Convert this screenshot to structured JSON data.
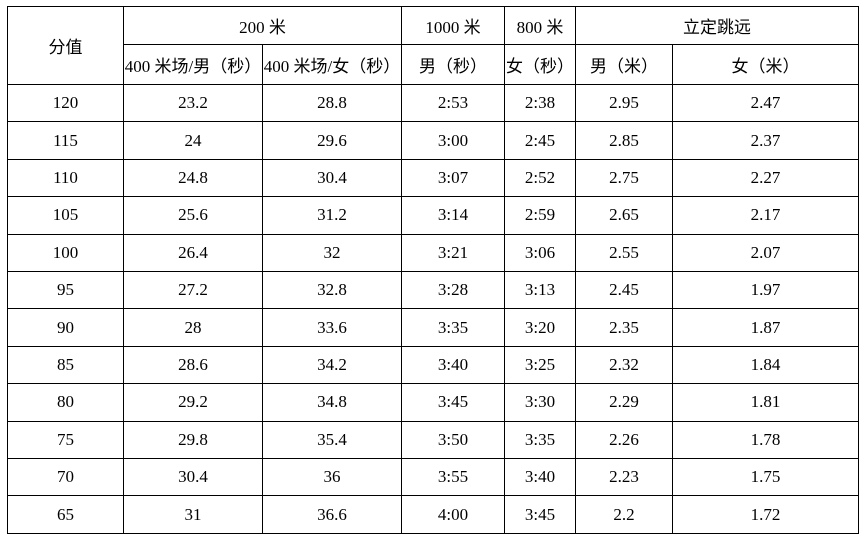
{
  "table": {
    "header": {
      "score_label": "分值",
      "group_200m": "200 米",
      "group_1000m": "1000 米",
      "group_800m": "800 米",
      "group_standing_long_jump": "立定跳远",
      "sub_400m_track_male_seconds": "400 米场/男（秒）",
      "sub_400m_track_female_seconds": "400 米场/女（秒）",
      "sub_1000m_male_seconds": "男（秒）",
      "sub_800m_female_seconds": "女（秒）",
      "sub_jump_male_meters": "男（米）",
      "sub_jump_female_meters": "女（米）"
    },
    "rows": [
      [
        "120",
        "23.2",
        "28.8",
        "2:53",
        "2:38",
        "2.95",
        "2.47"
      ],
      [
        "115",
        "24",
        "29.6",
        "3:00",
        "2:45",
        "2.85",
        "2.37"
      ],
      [
        "110",
        "24.8",
        "30.4",
        "3:07",
        "2:52",
        "2.75",
        "2.27"
      ],
      [
        "105",
        "25.6",
        "31.2",
        "3:14",
        "2:59",
        "2.65",
        "2.17"
      ],
      [
        "100",
        "26.4",
        "32",
        "3:21",
        "3:06",
        "2.55",
        "2.07"
      ],
      [
        "95",
        "27.2",
        "32.8",
        "3:28",
        "3:13",
        "2.45",
        "1.97"
      ],
      [
        "90",
        "28",
        "33.6",
        "3:35",
        "3:20",
        "2.35",
        "1.87"
      ],
      [
        "85",
        "28.6",
        "34.2",
        "3:40",
        "3:25",
        "2.32",
        "1.84"
      ],
      [
        "80",
        "29.2",
        "34.8",
        "3:45",
        "3:30",
        "2.29",
        "1.81"
      ],
      [
        "75",
        "29.8",
        "35.4",
        "3:50",
        "3:35",
        "2.26",
        "1.78"
      ],
      [
        "70",
        "30.4",
        "36",
        "3:55",
        "3:40",
        "2.23",
        "1.75"
      ],
      [
        "65",
        "31",
        "36.6",
        "4:00",
        "3:45",
        "2.2",
        "1.72"
      ]
    ],
    "colors": {
      "border": "#000000",
      "text": "#000000",
      "background": "#ffffff"
    }
  }
}
